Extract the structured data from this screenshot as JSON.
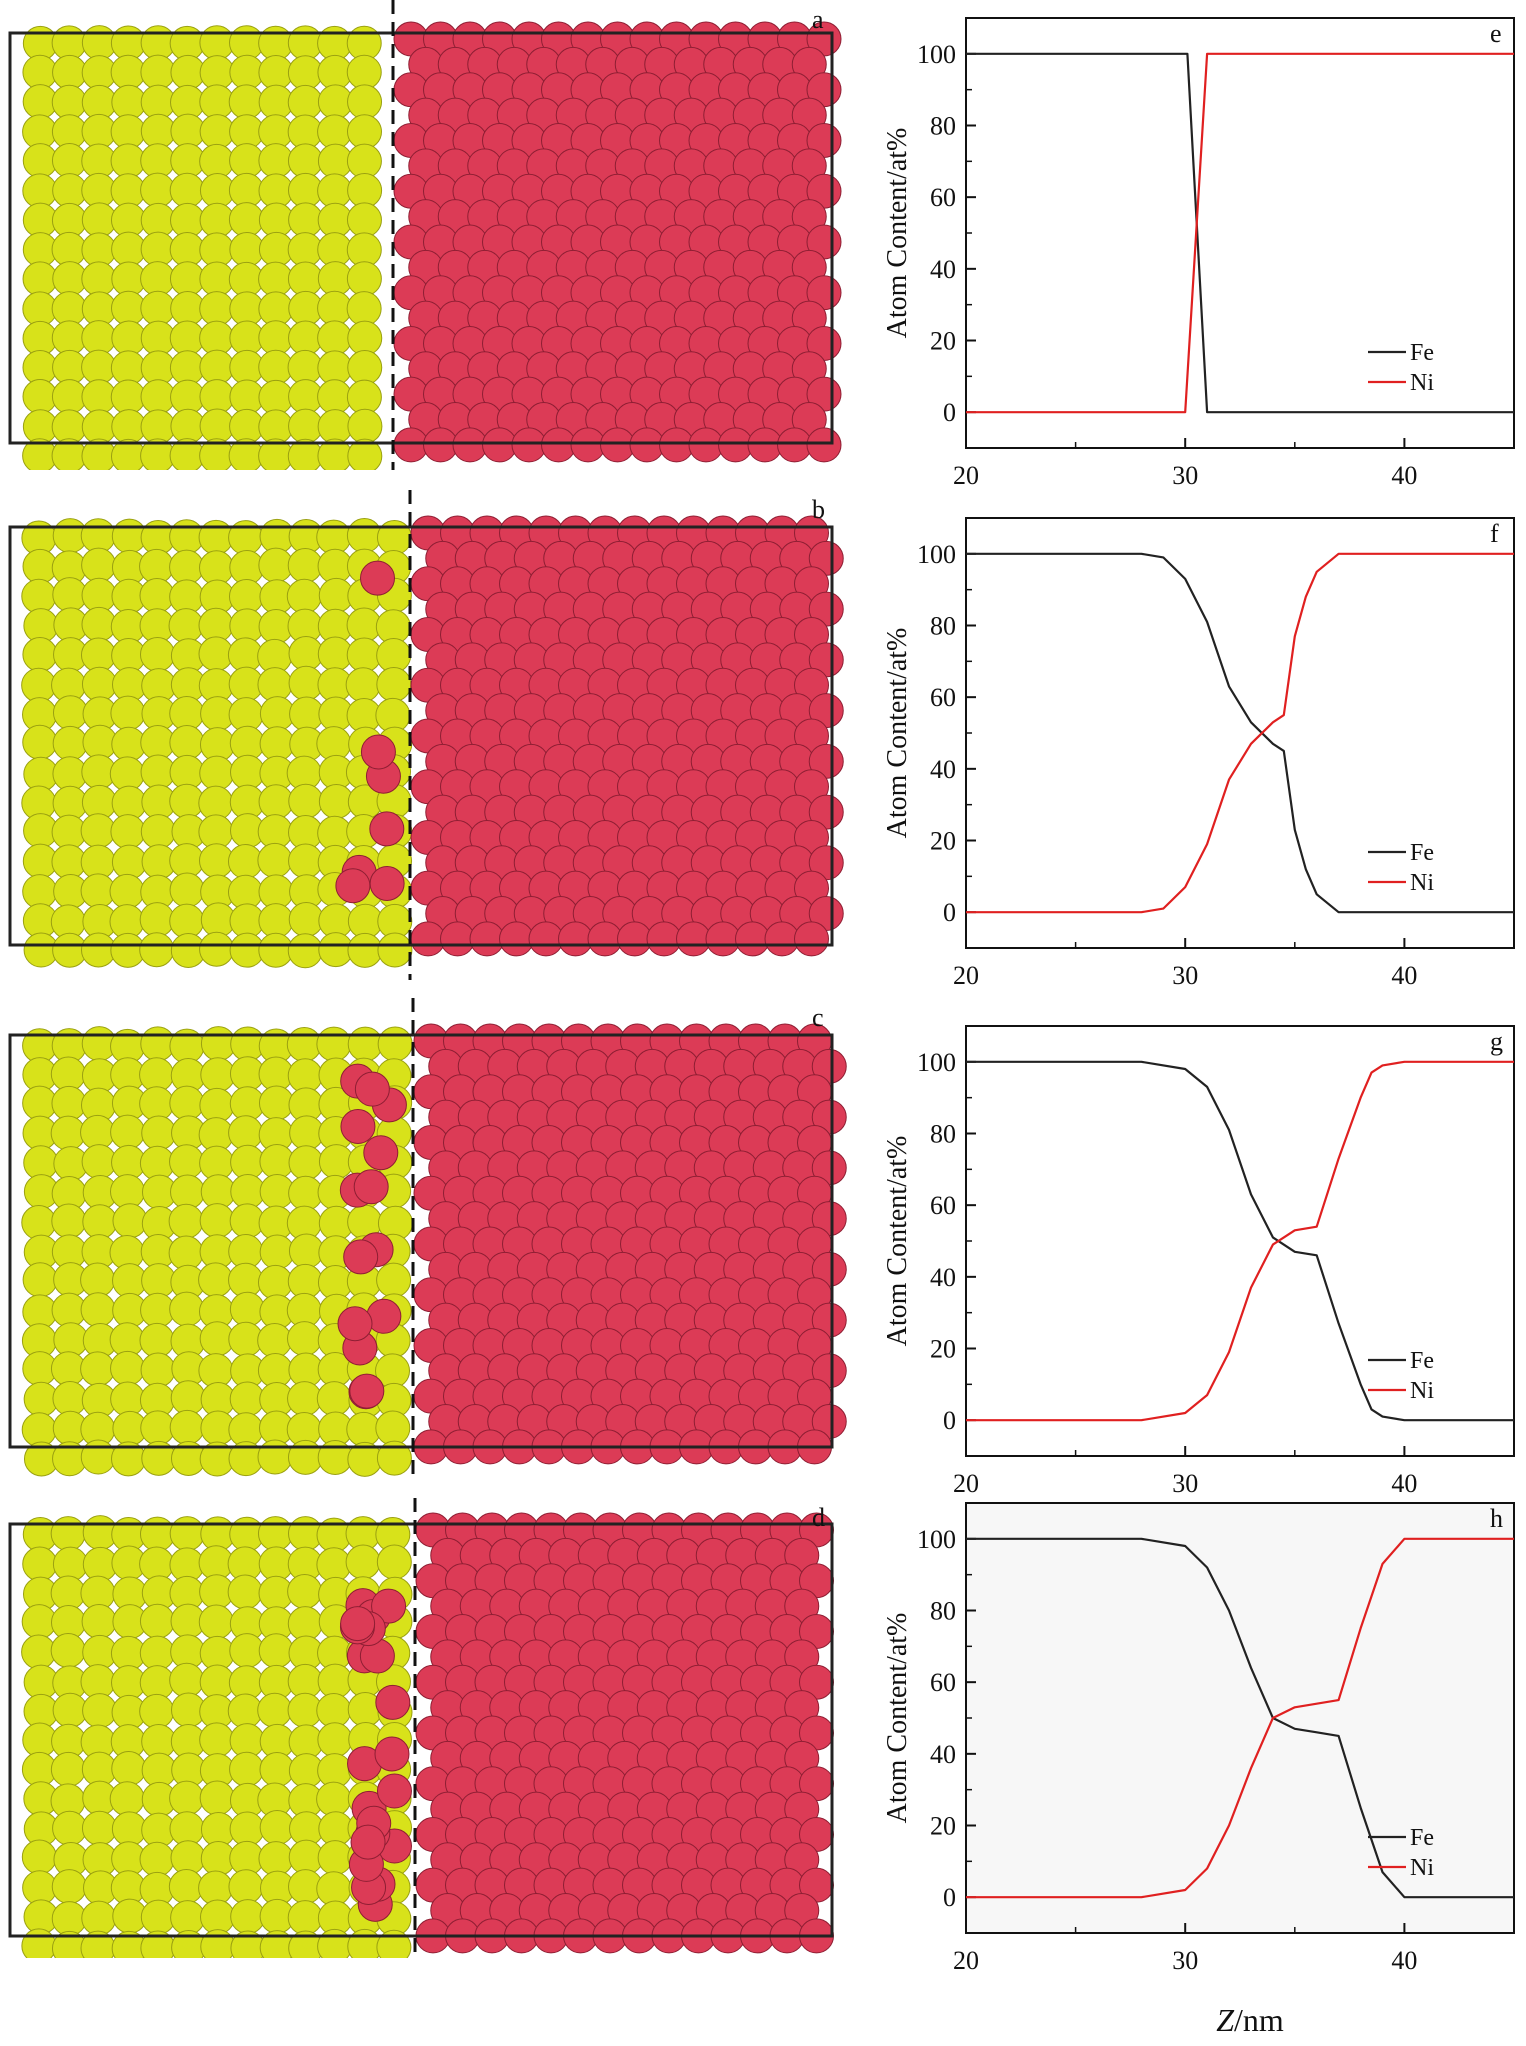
{
  "figure": {
    "xaxis_title_var": "Z",
    "xaxis_title_unit": "/nm",
    "colors": {
      "fe_atom": "#d8e21a",
      "ni_atom": "#dc3b56",
      "fe_line": "#222222",
      "ni_line": "#e02020"
    }
  },
  "structures": [
    {
      "letter": "a"
    },
    {
      "letter": "b"
    },
    {
      "letter": "c"
    },
    {
      "letter": "d"
    }
  ],
  "chart_data": [
    {
      "type": "line",
      "letter": "e",
      "ylabel": "Atom Content/at%",
      "xlabel": "Z/nm",
      "xlim": [
        20,
        45
      ],
      "ylim": [
        -10,
        110
      ],
      "xticks": [
        20,
        30,
        40
      ],
      "yticks": [
        0,
        20,
        40,
        60,
        80,
        100
      ],
      "legend_position": "bottom-right",
      "background": "#ffffff",
      "series": [
        {
          "name": "Fe",
          "color": "#222222",
          "x": [
            20,
            30,
            30.1,
            31,
            45
          ],
          "y": [
            100,
            100,
            100,
            0,
            0
          ]
        },
        {
          "name": "Ni",
          "color": "#e02020",
          "x": [
            20,
            30,
            31,
            31.1,
            45
          ],
          "y": [
            0,
            0,
            100,
            100,
            100
          ]
        }
      ]
    },
    {
      "type": "line",
      "letter": "f",
      "ylabel": "Atom Content/at%",
      "xlabel": "Z/nm",
      "xlim": [
        20,
        45
      ],
      "ylim": [
        -10,
        110
      ],
      "xticks": [
        20,
        30,
        40
      ],
      "yticks": [
        0,
        20,
        40,
        60,
        80,
        100
      ],
      "legend_position": "bottom-right",
      "background": "#ffffff",
      "series": [
        {
          "name": "Fe",
          "color": "#222222",
          "x": [
            20,
            28,
            29,
            30,
            31,
            32,
            33,
            34,
            34.5,
            35,
            35.5,
            36,
            37,
            45
          ],
          "y": [
            100,
            100,
            99,
            93,
            81,
            63,
            53,
            47,
            45,
            23,
            12,
            5,
            0,
            0
          ]
        },
        {
          "name": "Ni",
          "color": "#e02020",
          "x": [
            20,
            28,
            29,
            30,
            31,
            32,
            33,
            34,
            34.5,
            35,
            35.5,
            36,
            37,
            45
          ],
          "y": [
            0,
            0,
            1,
            7,
            19,
            37,
            47,
            53,
            55,
            77,
            88,
            95,
            100,
            100
          ]
        }
      ]
    },
    {
      "type": "line",
      "letter": "g",
      "ylabel": "Atom Content/at%",
      "xlabel": "Z/nm",
      "xlim": [
        20,
        45
      ],
      "ylim": [
        -10,
        110
      ],
      "xticks": [
        20,
        30,
        40
      ],
      "yticks": [
        0,
        20,
        40,
        60,
        80,
        100
      ],
      "legend_position": "bottom-right",
      "background": "#ffffff",
      "series": [
        {
          "name": "Fe",
          "color": "#222222",
          "x": [
            20,
            28,
            30,
            31,
            32,
            33,
            34,
            35,
            36,
            37,
            38,
            38.5,
            39,
            40,
            45
          ],
          "y": [
            100,
            100,
            98,
            93,
            81,
            63,
            51,
            47,
            46,
            27,
            10,
            3,
            1,
            0,
            0
          ]
        },
        {
          "name": "Ni",
          "color": "#e02020",
          "x": [
            20,
            28,
            30,
            31,
            32,
            33,
            34,
            35,
            36,
            37,
            38,
            38.5,
            39,
            40,
            45
          ],
          "y": [
            0,
            0,
            2,
            7,
            19,
            37,
            49,
            53,
            54,
            73,
            90,
            97,
            99,
            100,
            100
          ]
        }
      ]
    },
    {
      "type": "line",
      "letter": "h",
      "ylabel": "Atom Content/at%",
      "xlabel": "Z/nm",
      "xlim": [
        20,
        45
      ],
      "ylim": [
        -10,
        110
      ],
      "xticks": [
        20,
        30,
        40
      ],
      "yticks": [
        0,
        20,
        40,
        60,
        80,
        100
      ],
      "legend_position": "bottom-right",
      "background": "#f7f7f7",
      "series": [
        {
          "name": "Fe",
          "color": "#222222",
          "x": [
            20,
            28,
            30,
            31,
            32,
            33,
            34,
            35,
            36,
            37,
            38,
            39,
            40,
            45
          ],
          "y": [
            100,
            100,
            98,
            92,
            80,
            64,
            50,
            47,
            46,
            45,
            25,
            7,
            0,
            0
          ]
        },
        {
          "name": "Ni",
          "color": "#e02020",
          "x": [
            20,
            28,
            30,
            31,
            32,
            33,
            34,
            35,
            36,
            37,
            38,
            39,
            40,
            45
          ],
          "y": [
            0,
            0,
            2,
            8,
            20,
            36,
            50,
            53,
            54,
            55,
            75,
            93,
            100,
            100
          ]
        }
      ]
    }
  ]
}
